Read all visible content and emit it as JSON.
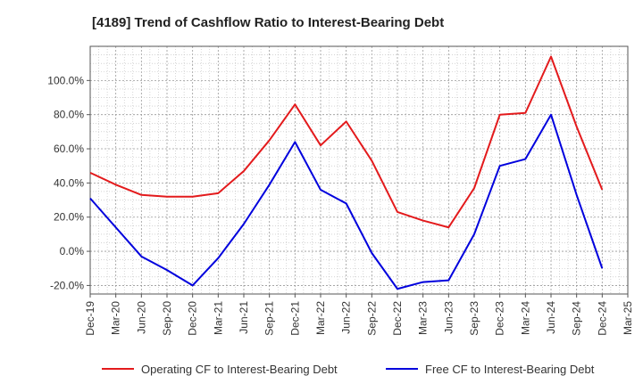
{
  "chart_data": {
    "type": "line",
    "title": "[4189]  Trend of Cashflow Ratio to Interest-Bearing Debt",
    "xlabel": "",
    "ylabel": "",
    "x": [
      "Dec-19",
      "Mar-20",
      "Jun-20",
      "Sep-20",
      "Dec-20",
      "Mar-21",
      "Jun-21",
      "Sep-21",
      "Dec-21",
      "Mar-22",
      "Jun-22",
      "Sep-22",
      "Dec-22",
      "Mar-23",
      "Jun-23",
      "Sep-23",
      "Dec-23",
      "Mar-24",
      "Jun-24",
      "Sep-24",
      "Dec-24",
      "Mar-25"
    ],
    "x_tick_labels": [
      "Dec-19",
      "Mar-20",
      "Jun-20",
      "Sep-20",
      "Dec-20",
      "Mar-21",
      "Jun-21",
      "Sep-21",
      "Dec-21",
      "Mar-22",
      "Jun-22",
      "Sep-22",
      "Dec-22",
      "Mar-23",
      "Jun-23",
      "Sep-23",
      "Dec-23",
      "Mar-24",
      "Jun-24",
      "Sep-24",
      "Dec-24",
      "Mar-25"
    ],
    "y_tick_values": [
      -20,
      0,
      20,
      40,
      60,
      80,
      100
    ],
    "y_tick_labels": [
      "-20.0%",
      "0.0%",
      "20.0%",
      "40.0%",
      "60.0%",
      "80.0%",
      "100.0%"
    ],
    "ylim": [
      -25,
      120
    ],
    "grid": true,
    "legend_position": "bottom",
    "series": [
      {
        "name": "Operating CF to Interest-Bearing Debt",
        "color": "#e31a1c",
        "values": [
          46,
          39,
          33,
          32,
          32,
          34,
          47,
          65,
          86,
          62,
          76,
          53,
          23,
          18,
          14,
          37,
          80,
          81,
          114,
          73,
          36,
          null
        ]
      },
      {
        "name": "Free CF to Interest-Bearing Debt",
        "color": "#0000dd",
        "values": [
          31,
          14,
          -3,
          -11,
          -20,
          -4,
          16,
          39,
          64,
          36,
          28,
          -1,
          -22,
          -18,
          -17,
          10,
          50,
          54,
          80,
          33,
          -10,
          null
        ]
      }
    ]
  }
}
